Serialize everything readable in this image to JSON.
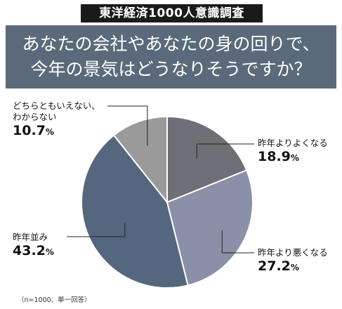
{
  "header": {
    "survey_tag": "東洋経済1000人意識調査",
    "question_line1": "あなたの会社やあなたの身の回りで、",
    "question_line2": "今年の景気はどうなりそうですか？"
  },
  "chart_data": {
    "type": "pie",
    "unit": "%",
    "slices": [
      {
        "label": "昨年よりよくなる",
        "value": 18.9,
        "value_text": "18.9",
        "color": "#6f6f78"
      },
      {
        "label": "昨年より悪くなる",
        "value": 27.2,
        "value_text": "27.2",
        "color": "#8a90a8"
      },
      {
        "label": "昨年並み",
        "value": 43.2,
        "value_text": "43.2",
        "color": "#54677f"
      },
      {
        "label": "どちらともいえない、わからない",
        "label_lines": [
          "どちらともいえない、",
          "わからない"
        ],
        "value": 10.7,
        "value_text": "10.7",
        "color": "#9a9a9a"
      }
    ],
    "edge_color": "#ffffff"
  },
  "footnote": "（n=1000、単一回答）"
}
